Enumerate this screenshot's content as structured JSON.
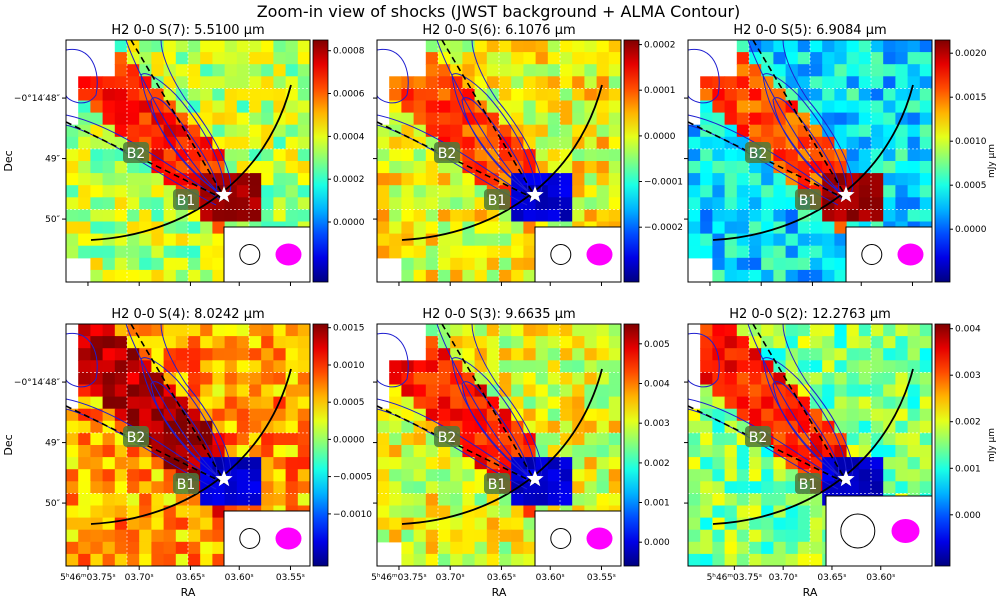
{
  "figure": {
    "title": "Zoom-in view of shocks (JWST background + ALMA Contour)",
    "ylabel": "Dec",
    "xlabel": "RA",
    "colorbar_label": "mJy µm",
    "y_ticks": [
      "−0°14′48″",
      "49″",
      "50″"
    ],
    "x_ticks": [
      "5ʰ46ᵐ03.75ˢ",
      "03.70ˢ",
      "03.65ˢ",
      "03.60ˢ",
      "03.55ˢ"
    ],
    "x_ticks_short": [
      "5ʰ46ᵐ03.75ˢ",
      "03.70ˢ",
      "03.65ˢ",
      "03.60ˢ"
    ],
    "labels": {
      "b1": "B1",
      "b2": "B2"
    },
    "colors": {
      "contour": "#1f1fd0",
      "jet_line": "#000000",
      "beam_alma": "#ff00ff",
      "star": "#ffffff"
    }
  },
  "chart_data": [
    {
      "type": "heatmap",
      "title": "H2 0-0 S(7): 5.5100 µm",
      "colorbar_ticks": [
        "0.0008",
        "0.0006",
        "0.0004",
        "0.0002",
        "0.0000"
      ],
      "colorbar_values": [
        0.0008,
        0.0006,
        0.0004,
        0.0002,
        0.0
      ],
      "colorbar_range": [
        -0.00028,
        0.00085
      ],
      "show_colorbar_label": false,
      "x_ticks_visible": false,
      "y_ticks_visible": true
    },
    {
      "type": "heatmap",
      "title": "H2 0-0 S(6): 6.1076 µm",
      "colorbar_ticks": [
        "0.0002",
        "0.0001",
        "0.0000",
        "−0.0001",
        "−0.0002"
      ],
      "colorbar_values": [
        0.0002,
        0.0001,
        0.0,
        -0.0001,
        -0.0002
      ],
      "colorbar_range": [
        -0.00032,
        0.00021
      ],
      "show_colorbar_label": false,
      "x_ticks_visible": false,
      "y_ticks_visible": false
    },
    {
      "type": "heatmap",
      "title": "H2 0-0 S(5): 6.9084 µm",
      "colorbar_ticks": [
        "0.0020",
        "0.0015",
        "0.0010",
        "0.0005",
        "0.0000"
      ],
      "colorbar_values": [
        0.002,
        0.0015,
        0.001,
        0.0005,
        0.0
      ],
      "colorbar_range": [
        -0.0006,
        0.00215
      ],
      "show_colorbar_label": true,
      "x_ticks_visible": false,
      "y_ticks_visible": false
    },
    {
      "type": "heatmap",
      "title": "H2 0-0 S(4): 8.0242 µm",
      "colorbar_ticks": [
        "0.0015",
        "0.0010",
        "0.0005",
        "0.0000",
        "−0.0005",
        "−0.0010"
      ],
      "colorbar_values": [
        0.0015,
        0.001,
        0.0005,
        0.0,
        -0.0005,
        -0.001
      ],
      "colorbar_range": [
        -0.0017,
        0.00155
      ],
      "show_colorbar_label": false,
      "x_ticks_visible": true,
      "y_ticks_visible": true
    },
    {
      "type": "heatmap",
      "title": "H2 0-0 S(3): 9.6635 µm",
      "colorbar_ticks": [
        "0.005",
        "0.004",
        "0.003",
        "0.002",
        "0.001",
        "0.000"
      ],
      "colorbar_values": [
        0.005,
        0.004,
        0.003,
        0.002,
        0.001,
        0.0
      ],
      "colorbar_range": [
        -0.0006,
        0.0055
      ],
      "show_colorbar_label": false,
      "x_ticks_visible": true,
      "y_ticks_visible": false
    },
    {
      "type": "heatmap",
      "title": "H2 0-0 S(2): 12.2763 µm",
      "colorbar_ticks": [
        "0.004",
        "0.003",
        "0.002",
        "0.001",
        "0.000"
      ],
      "colorbar_values": [
        0.004,
        0.003,
        0.002,
        0.001,
        0.0
      ],
      "colorbar_range": [
        -0.0011,
        0.0041
      ],
      "show_colorbar_label": true,
      "x_ticks_visible": true,
      "y_ticks_visible": false
    }
  ]
}
